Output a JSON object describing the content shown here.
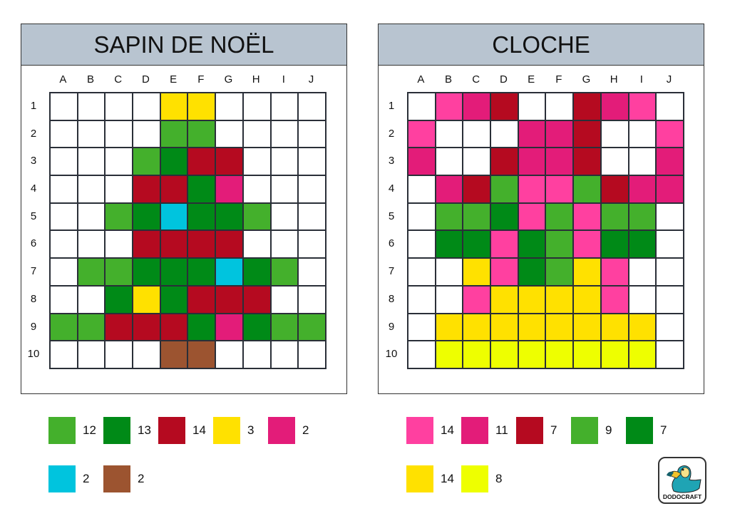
{
  "palette": {
    "W": "#ffffff",
    "L": "#44b02c",
    "G": "#008a17",
    "R": "#b50a20",
    "Y": "#ffe100",
    "P": "#e31c79",
    "C": "#00c4de",
    "B": "#9c5430",
    "H": "#ff40a0",
    "Z": "#eeff00"
  },
  "columns": [
    "A",
    "B",
    "C",
    "D",
    "E",
    "F",
    "G",
    "H",
    "I",
    "J"
  ],
  "rows": [
    "1",
    "2",
    "3",
    "4",
    "5",
    "6",
    "7",
    "8",
    "9",
    "10"
  ],
  "puzzles": [
    {
      "title": "SAPIN DE NOËL",
      "grid": [
        "WWWWYYWWWW",
        "WWWWLLWWWW",
        "WWWLGRRWWW",
        "WWWRRGPWWW",
        "WWLGCGGLWW",
        "WWWRRRRWWW",
        "WLLGGGCGLW",
        "WWGYGRRRWW",
        "LLRRRGPGLL",
        "WWWWBBWWWW"
      ],
      "legend": [
        [
          {
            "color": "L",
            "count": "12"
          },
          {
            "color": "G",
            "count": "13"
          },
          {
            "color": "R",
            "count": "14"
          },
          {
            "color": "Y",
            "count": "3"
          },
          {
            "color": "P",
            "count": "2"
          }
        ],
        [
          {
            "color": "C",
            "count": "2"
          },
          {
            "color": "B",
            "count": "2"
          }
        ]
      ]
    },
    {
      "title": "CLOCHE",
      "grid": [
        "WHPRWWRPHW",
        "HWWWPPRWWH",
        "PWWRPPRWWP",
        "WPRLHHLRPP",
        "WLLGHLHLLW",
        "WGGHGLHGGW",
        "WWYHGLYHWW",
        "WWHYYYYHWW",
        "WYYYYYYYYW",
        "WZZZZZZZZW"
      ],
      "legend": [
        [
          {
            "color": "H",
            "count": "14"
          },
          {
            "color": "P",
            "count": "11"
          },
          {
            "color": "R",
            "count": "7"
          },
          {
            "color": "L",
            "count": "9"
          },
          {
            "color": "G",
            "count": "7"
          }
        ],
        [
          {
            "color": "Y",
            "count": "14"
          },
          {
            "color": "Z",
            "count": "8"
          }
        ]
      ]
    }
  ],
  "logo": {
    "text": "DODOCRAFT"
  }
}
